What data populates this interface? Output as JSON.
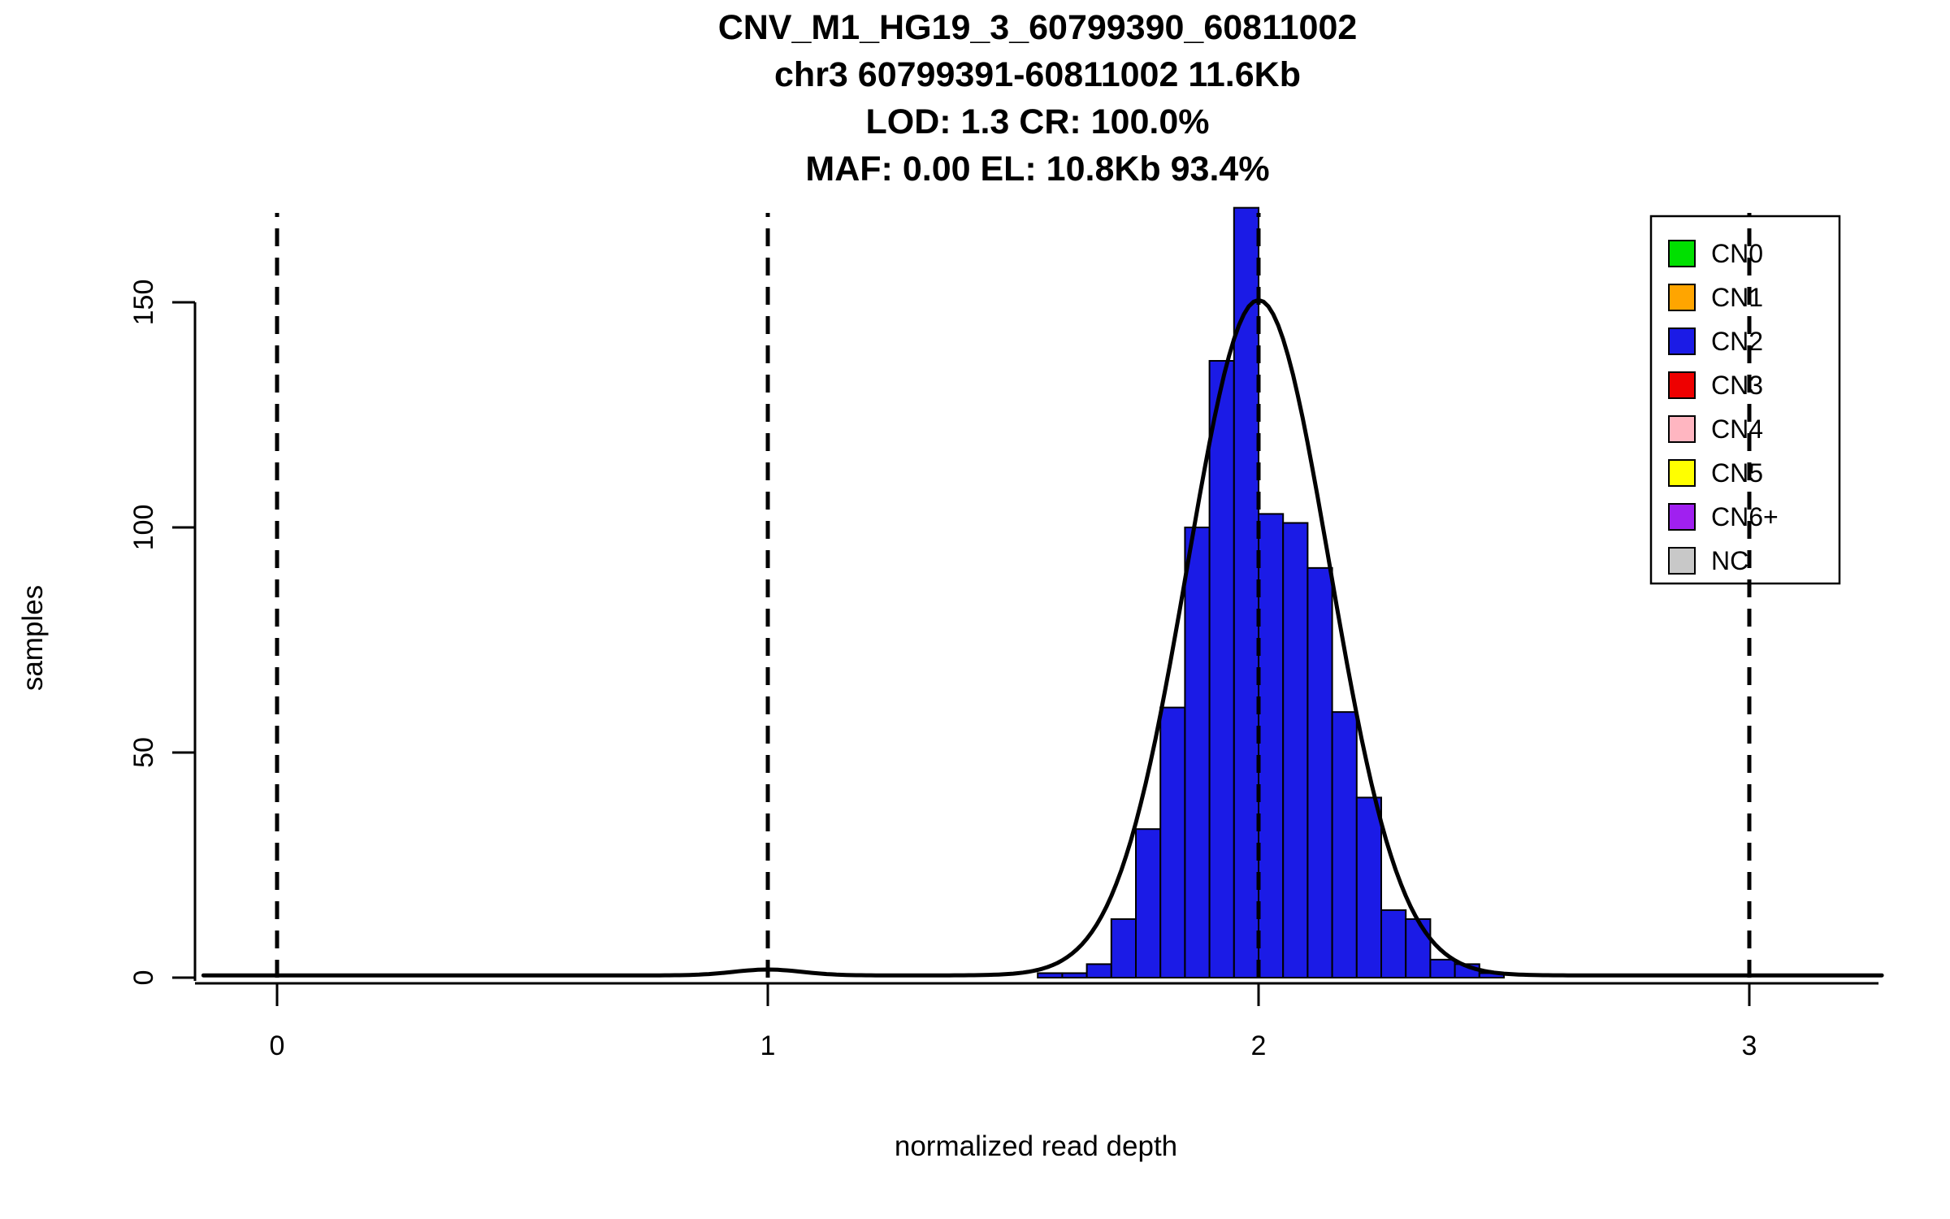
{
  "title": {
    "line1": "CNV_M1_HG19_3_60799390_60811002",
    "line2": "chr3 60799391-60811002 11.6Kb",
    "line3": "LOD: 1.3 CR: 100.0%",
    "line4": "MAF: 0.00 EL: 10.8Kb 93.4%"
  },
  "chart_data": {
    "type": "bar",
    "title": "CNV_M1_HG19_3_60799390_60811002 / chr3 60799391-60811002 11.6Kb / LOD: 1.3 CR: 100.0% / MAF: 0.00 EL: 10.8Kb 93.4%",
    "xlabel": "normalized read depth",
    "ylabel": "samples",
    "xlim": [
      -0.17,
      3.27
    ],
    "ylim": [
      0,
      172
    ],
    "grid": false,
    "x_ticks": [
      0,
      1,
      2,
      3
    ],
    "x_tick_labels": [
      "0",
      "1",
      "2",
      "3"
    ],
    "y_ticks": [
      0,
      50,
      100,
      150
    ],
    "y_tick_labels": [
      "0",
      "50",
      "100",
      "150"
    ],
    "histogram": {
      "series_name": "CN2 samples",
      "bin_start": 1.55,
      "bin_width": 0.05,
      "counts": [
        1,
        1,
        3,
        13,
        33,
        60,
        100,
        137,
        171,
        103,
        101,
        91,
        59,
        40,
        15,
        13,
        4,
        3,
        1
      ],
      "fill": "#1b1be6",
      "stroke": "#000000"
    },
    "fit_curve": {
      "name": "gaussian-mixture-fit",
      "baseline": 0.5,
      "components": [
        {
          "mean": 2.0,
          "sd": 0.145,
          "peak": 150
        },
        {
          "mean": 1.0,
          "sd": 0.07,
          "peak": 1.3
        }
      ],
      "color": "#000000"
    },
    "dashed_lines_x": [
      0,
      1,
      2,
      3
    ],
    "legend": {
      "position": "top-right",
      "items": [
        {
          "label": "CN0",
          "color": "#00e000"
        },
        {
          "label": "CN1",
          "color": "#ffa500"
        },
        {
          "label": "CN2",
          "color": "#1b1be6"
        },
        {
          "label": "CN3",
          "color": "#ee0000"
        },
        {
          "label": "CN4",
          "color": "#ffb6c1"
        },
        {
          "label": "CN5",
          "color": "#ffff00"
        },
        {
          "label": "CN6+",
          "color": "#a020f0"
        },
        {
          "label": "NC",
          "color": "#c8c8c8"
        }
      ]
    }
  }
}
